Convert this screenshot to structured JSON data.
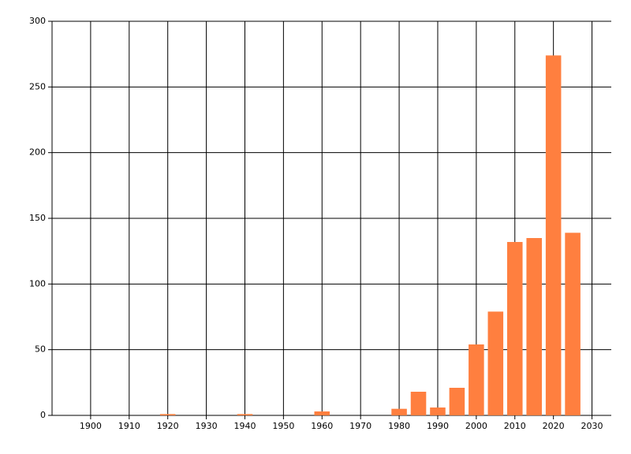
{
  "chart_data": {
    "type": "bar",
    "x": [
      1920,
      1940,
      1960,
      1980,
      1985,
      1990,
      1995,
      2000,
      2005,
      2010,
      2015,
      2020,
      2025
    ],
    "values": [
      1,
      1,
      3,
      5,
      18,
      6,
      21,
      54,
      79,
      132,
      135,
      274,
      139
    ],
    "color": "#ff7f3f",
    "xlim": [
      1890,
      2035
    ],
    "xticks": [
      1900,
      1910,
      1920,
      1930,
      1940,
      1950,
      1960,
      1970,
      1980,
      1990,
      2000,
      2010,
      2020,
      2030
    ],
    "ylim": [
      0,
      300
    ],
    "yticks": [
      0,
      50,
      100,
      150,
      200,
      250,
      300
    ],
    "grid": true
  }
}
